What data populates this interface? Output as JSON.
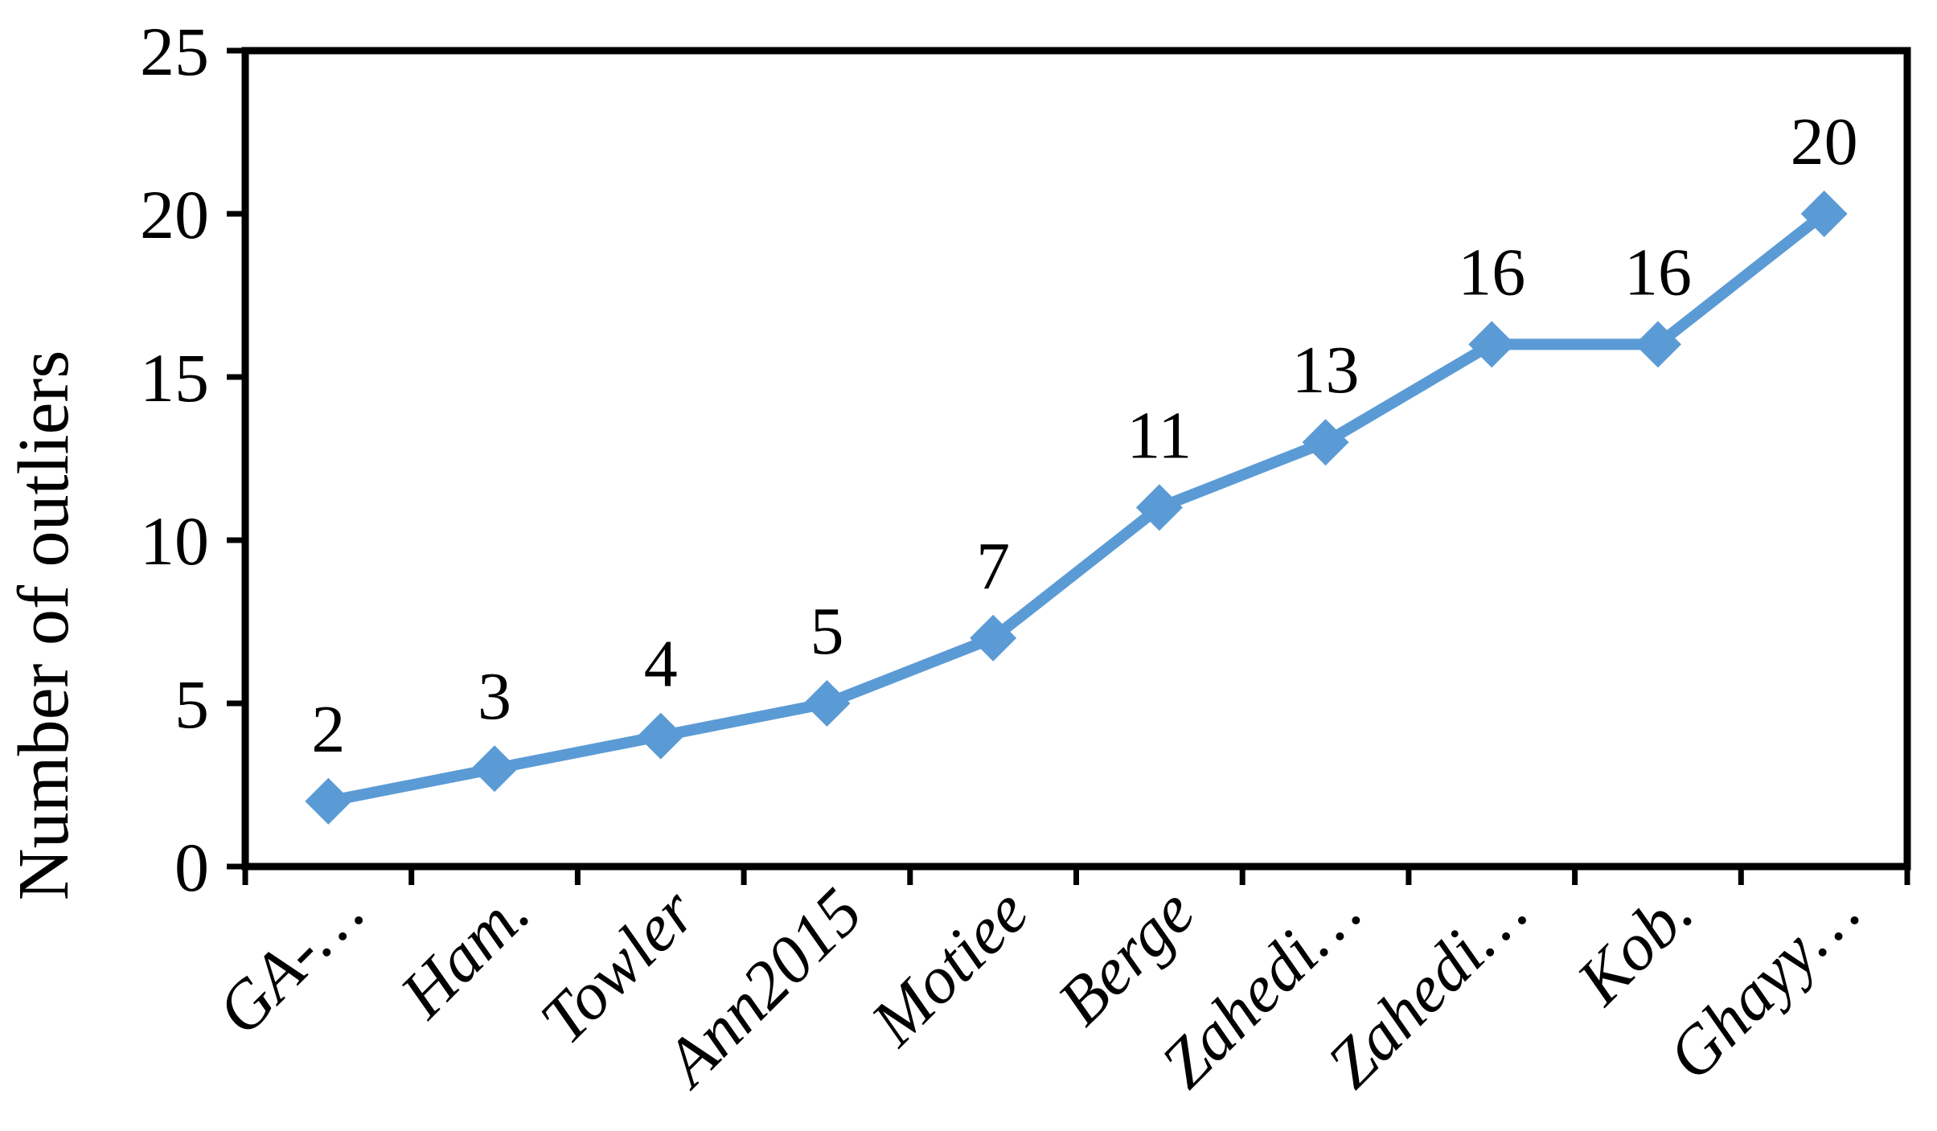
{
  "chart_data": {
    "type": "line",
    "categories": [
      "GA-…",
      "Ham.",
      "Towler",
      "Ann2015",
      "Motiee",
      "Berge",
      "Zahedi…",
      "Zahedi…",
      "Kob.",
      "Ghayy…"
    ],
    "series": [
      {
        "name": "Number of outliers",
        "values": [
          2,
          3,
          4,
          5,
          7,
          11,
          13,
          16,
          16,
          20
        ]
      }
    ],
    "data_labels": [
      "2",
      "3",
      "4",
      "5",
      "7",
      "11",
      "13",
      "16",
      "16",
      "20"
    ],
    "title": "",
    "xlabel": "",
    "ylabel": "Number of outliers",
    "ylim": [
      0,
      25
    ],
    "yticks": [
      "0",
      "5",
      "10",
      "15",
      "20",
      "25"
    ],
    "grid": false,
    "legend": "none",
    "line_color": "#5B9BD5",
    "marker": "diamond",
    "axis_color": "#000000",
    "text_color": "#000000"
  }
}
